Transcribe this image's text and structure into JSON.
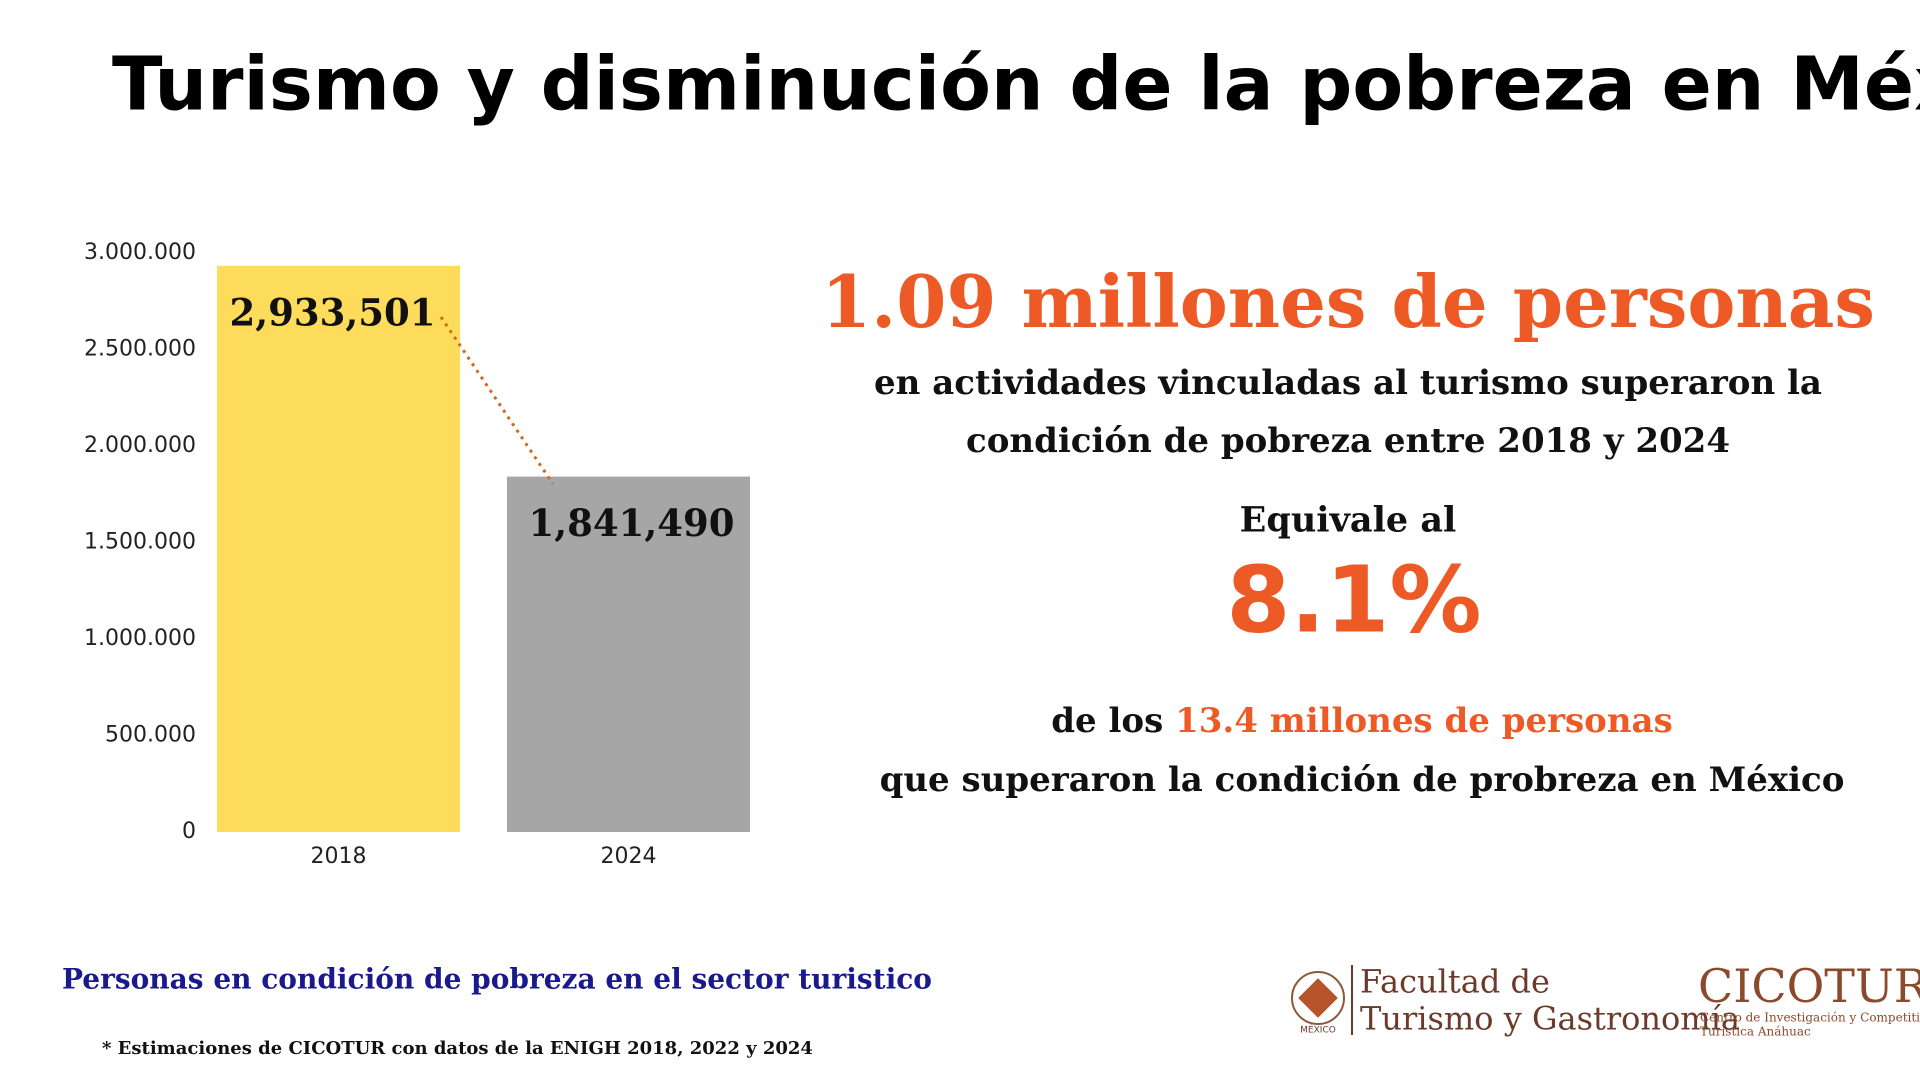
{
  "title": "Turismo y disminución de la pobreza en México",
  "headline": "1.09 millones de personas",
  "subline_1": "en actividades vinculadas al turismo superaron la",
  "subline_2": "condición de pobreza entre 2018 y 2024",
  "equivale": "Equivale al",
  "percent": "8.1%",
  "line4_prefix": "de los",
  "line4_highlight": "13.4 millones de personas",
  "line5": "que superaron la condición de probreza en México",
  "chart_caption": "Personas en condición de pobreza en el sector turistico",
  "footnote": "* Estimaciones  de CICOTUR con datos de la ENIGH 2018, 2022 y 2024",
  "logo_faculty_1": "Facultad de",
  "logo_faculty_2": "Turismo y Gastronomía",
  "logo_mexico": "MÉXICO",
  "logo_cicotur": "CICOTUR",
  "logo_cicotur_sub_1": "Centro de Investigación y Competitividad",
  "logo_cicotur_sub_2": "Turística Anáhuac",
  "chart_data": {
    "type": "bar",
    "categories": [
      "2018",
      "2024"
    ],
    "values": [
      2933501,
      1841490
    ],
    "value_labels": [
      "2,933,501",
      "1,841,490"
    ],
    "colors": [
      "#fddc5c",
      "#a6a6a6"
    ],
    "ylim": [
      0,
      3000000
    ],
    "yticks": [
      0,
      {
        "value": 500000,
        "label": "500.000"
      },
      {
        "value": 1000000,
        "label": "1.000.000"
      },
      {
        "value": 1500000,
        "label": "1.500.000"
      },
      {
        "value": 2000000,
        "label": "2.000.000"
      },
      {
        "value": 2500000,
        "label": "2.500.000"
      },
      {
        "value": 3000000,
        "label": "3.000.000"
      }
    ],
    "grid": false
  }
}
